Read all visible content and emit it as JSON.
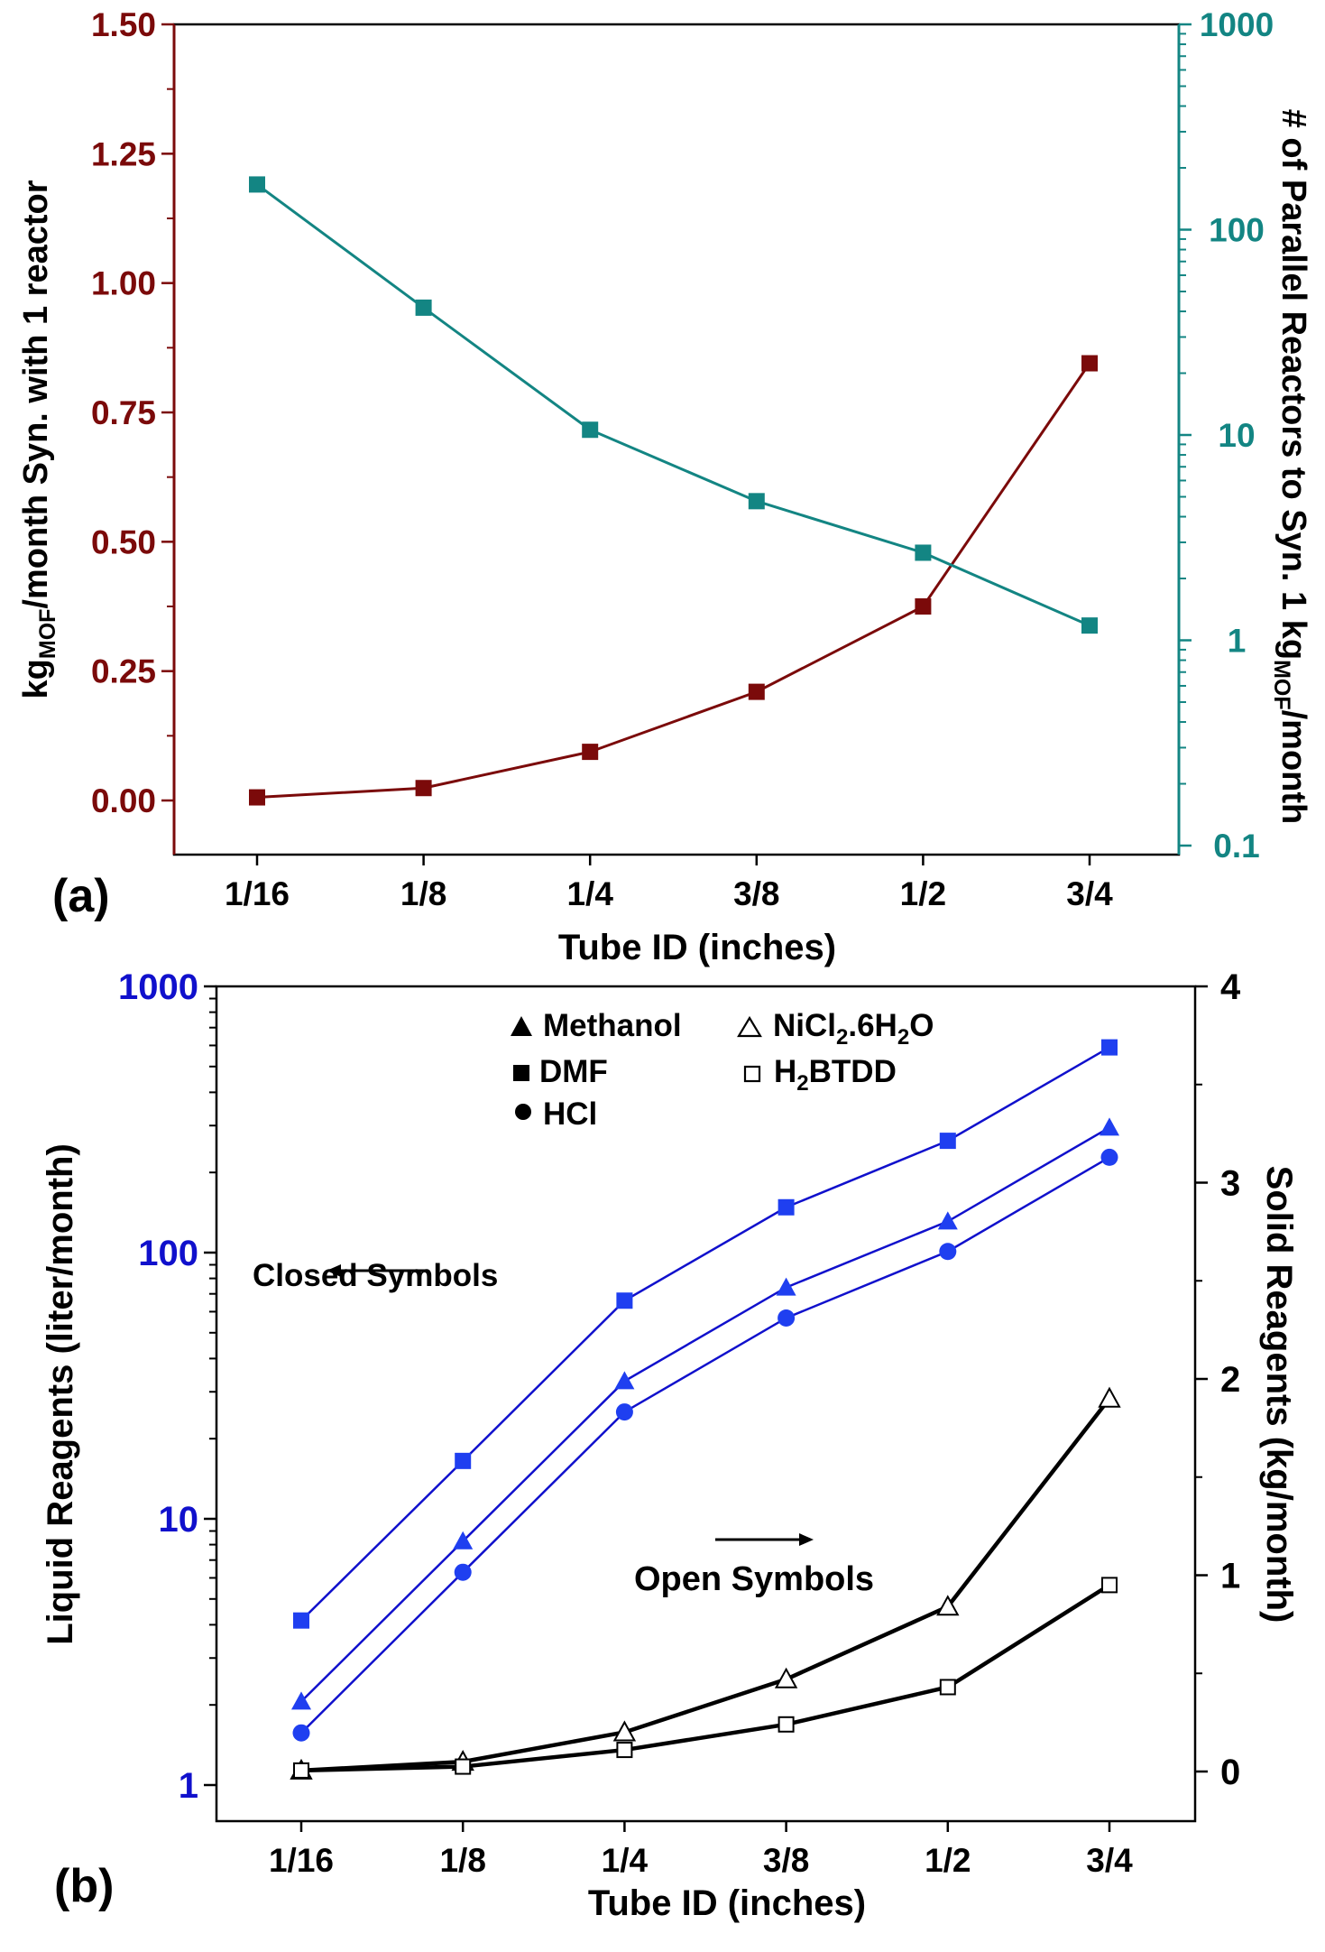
{
  "panel_a": {
    "panel_label": "(a)",
    "xlabel": "Tube ID (inches)",
    "ylabel_left_pre": "kg",
    "ylabel_left_sub": "MOF",
    "ylabel_left_post": "/month Syn. with 1 reactor",
    "ylabel_right_pre": "# of Parallel Reactors to Syn. 1 kg",
    "ylabel_right_sub": "MOF",
    "ylabel_right_post": "/month",
    "left_color": "#7b0a0a",
    "right_color": "#138583"
  },
  "panel_b": {
    "panel_label": "(b)",
    "xlabel": "Tube ID (inches)",
    "ylabel_left": "Liquid Reagents (liter/month)",
    "ylabel_right": "Solid Reagents (kg/month)",
    "annotation_closed": "Closed Symbols",
    "annotation_open": "Open Symbols",
    "left_color": "#1010cc",
    "liquid_marker_color": "#1f3ff0",
    "legend": {
      "methanol": "Methanol",
      "dmf": "DMF",
      "hcl": "HCl",
      "nicl2_pre": "NiCl",
      "nicl2_sub1": "2",
      "nicl2_mid": ".6H",
      "nicl2_sub2": "2",
      "nicl2_post": "O",
      "h2btdd_pre": "H",
      "h2btdd_sub": "2",
      "h2btdd_post": "BTDD"
    }
  },
  "chart_data": [
    {
      "type": "line",
      "categories": [
        "1/16",
        "1/8",
        "1/4",
        "3/8",
        "1/2",
        "3/4"
      ],
      "xlabel": "Tube ID (inches)",
      "ylabel": "kgMOF/month Syn. with 1 reactor",
      "ylim": [
        0,
        1.5
      ],
      "yticks": [
        "0.00",
        "0.25",
        "0.50",
        "0.75",
        "1.00",
        "1.25",
        "1.50"
      ],
      "y2label": "# of Parallel Reactors to Syn. 1 kgMOF/month",
      "y2lim": [
        0.1,
        1000
      ],
      "y2scale": "log",
      "y2ticks": [
        "0.1",
        "1",
        "10",
        "100",
        "1000"
      ],
      "series": [
        {
          "axis": "left",
          "color": "#7b0a0a",
          "values": [
            0.006,
            0.024,
            0.094,
            0.21,
            0.375,
            0.845
          ]
        },
        {
          "axis": "right",
          "color": "#138583",
          "values": [
            166,
            41.7,
            10.6,
            4.76,
            2.67,
            1.18
          ]
        }
      ]
    },
    {
      "type": "line",
      "categories": [
        "1/16",
        "1/8",
        "1/4",
        "3/8",
        "1/2",
        "3/4"
      ],
      "xlabel": "Tube ID (inches)",
      "ylabel": "Liquid Reagents (liter/month)",
      "ylim": [
        1,
        1000
      ],
      "yscale": "log",
      "yticks": [
        "1",
        "10",
        "100",
        "1000"
      ],
      "y2label": "Solid Reagents (kg/month)",
      "y2lim": [
        -0.1,
        4
      ],
      "y2ticks": [
        "0",
        "1",
        "2",
        "3",
        "4"
      ],
      "legend_position": "top",
      "series": [
        {
          "name": "Methanol",
          "axis": "left",
          "marker": "filled-triangle",
          "values": [
            2.06,
            8.24,
            32.9,
            74,
            131,
            295
          ]
        },
        {
          "name": "DMF",
          "axis": "left",
          "marker": "filled-square",
          "values": [
            4.15,
            16.5,
            66,
            148,
            263,
            590
          ]
        },
        {
          "name": "HCl",
          "axis": "left",
          "marker": "filled-circle",
          "values": [
            1.57,
            6.3,
            25.2,
            56.8,
            101,
            228
          ]
        },
        {
          "name": "NiCl2.6H2O",
          "axis": "right",
          "marker": "open-triangle",
          "values": [
            0.005,
            0.05,
            0.2,
            0.47,
            0.84,
            1.9
          ]
        },
        {
          "name": "H2BTDD",
          "axis": "right",
          "marker": "open-square",
          "values": [
            0.005,
            0.025,
            0.11,
            0.24,
            0.43,
            0.95
          ]
        }
      ]
    }
  ]
}
